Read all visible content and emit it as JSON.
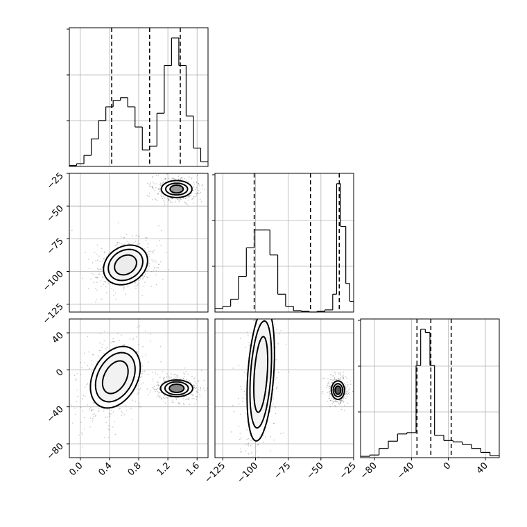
{
  "chart_data": {
    "type": "corner",
    "parameters": [
      {
        "range": [
          -0.15,
          1.75
        ],
        "ticks": [
          0.0,
          0.4,
          0.8,
          1.2,
          1.6
        ],
        "tick_labels": [
          "0.0",
          "0.4",
          "0.8",
          "1.2",
          "1.6"
        ]
      },
      {
        "range": [
          -131,
          -25
        ],
        "ticks": [
          -125,
          -100,
          -75,
          -50,
          -25
        ],
        "tick_labels": [
          "−125",
          "−100",
          "−75",
          "−50",
          "−25"
        ]
      },
      {
        "range": [
          -95,
          55
        ],
        "ticks": [
          -80,
          -40,
          0,
          40
        ],
        "tick_labels": [
          "−80",
          "−40",
          "0",
          "40"
        ]
      }
    ],
    "quantile_lines": [
      [
        0.43,
        0.95,
        1.37
      ],
      [
        -101,
        -58,
        -36
      ],
      [
        -34,
        -19,
        3
      ]
    ],
    "histograms": [
      {
        "edges": [
          -0.15,
          -0.05,
          0.05,
          0.15,
          0.25,
          0.35,
          0.45,
          0.55,
          0.65,
          0.75,
          0.85,
          0.95,
          1.05,
          1.15,
          1.25,
          1.35,
          1.45,
          1.55,
          1.65,
          1.75
        ],
        "counts": [
          1,
          3,
          12,
          30,
          50,
          65,
          72,
          75,
          65,
          43,
          18,
          22,
          58,
          110,
          140,
          110,
          55,
          20,
          5
        ]
      },
      {
        "edges": [
          -131,
          -125,
          -119,
          -113,
          -107,
          -101,
          -95,
          -89,
          -83,
          -77,
          -71,
          -65,
          -59,
          -53,
          -47,
          -41,
          -38,
          -35,
          -31,
          -28,
          -25
        ],
        "counts": [
          5,
          8,
          18,
          50,
          90,
          115,
          115,
          80,
          25,
          8,
          2,
          1,
          0,
          1,
          3,
          25,
          180,
          120,
          40,
          15
        ]
      },
      {
        "edges": [
          -95,
          -85,
          -75,
          -65,
          -55,
          -45,
          -35,
          -30,
          -25,
          -20,
          -15,
          -5,
          5,
          15,
          25,
          35,
          45,
          55
        ],
        "counts": [
          2,
          4,
          14,
          25,
          36,
          38,
          140,
          195,
          190,
          140,
          34,
          26,
          24,
          20,
          14,
          8,
          3
        ]
      }
    ],
    "contours_2d": [
      {
        "panel": "param1-vs-param2",
        "blobs": [
          {
            "cx": 0.62,
            "cy": -95,
            "radii": [
              [
                0.32,
                14
              ],
              [
                0.25,
                11
              ],
              [
                0.16,
                7
              ]
            ],
            "rot": -32,
            "fill": "#ececec"
          },
          {
            "cx": 1.32,
            "cy": -37,
            "radii": [
              [
                0.21,
                6.5
              ],
              [
                0.15,
                4.5
              ],
              [
                0.09,
                3
              ]
            ],
            "rot": 0,
            "fill": "#999999"
          }
        ]
      },
      {
        "panel": "param1-vs-param3",
        "blobs": [
          {
            "cx": 0.48,
            "cy": -8,
            "radii": [
              [
                0.45,
                24
              ],
              [
                0.36,
                19
              ],
              [
                0.24,
                12
              ]
            ],
            "rot": -62,
            "fill": "#f2f2f2"
          },
          {
            "cx": 1.32,
            "cy": -20,
            "radii": [
              [
                0.22,
                9
              ],
              [
                0.16,
                7
              ],
              [
                0.1,
                4.5
              ]
            ],
            "rot": 0,
            "fill": "#888888"
          }
        ]
      },
      {
        "panel": "param2-vs-param3",
        "blobs": [
          {
            "cx": -96,
            "cy": -5,
            "radii": [
              [
                51,
                14
              ],
              [
                41,
                11
              ],
              [
                29,
                7
              ]
            ],
            "rot": -86,
            "fill": "#f2f2f2"
          },
          {
            "cx": -37,
            "cy": -22,
            "radii": [
              [
                5,
                10
              ],
              [
                3.6,
                7
              ],
              [
                2.2,
                4.5
              ]
            ],
            "rot": 0,
            "fill": "#555555"
          }
        ]
      }
    ],
    "grid": true,
    "colors": {
      "line": "#000000",
      "grid": "#b0b0b0",
      "points": "#555555"
    }
  }
}
